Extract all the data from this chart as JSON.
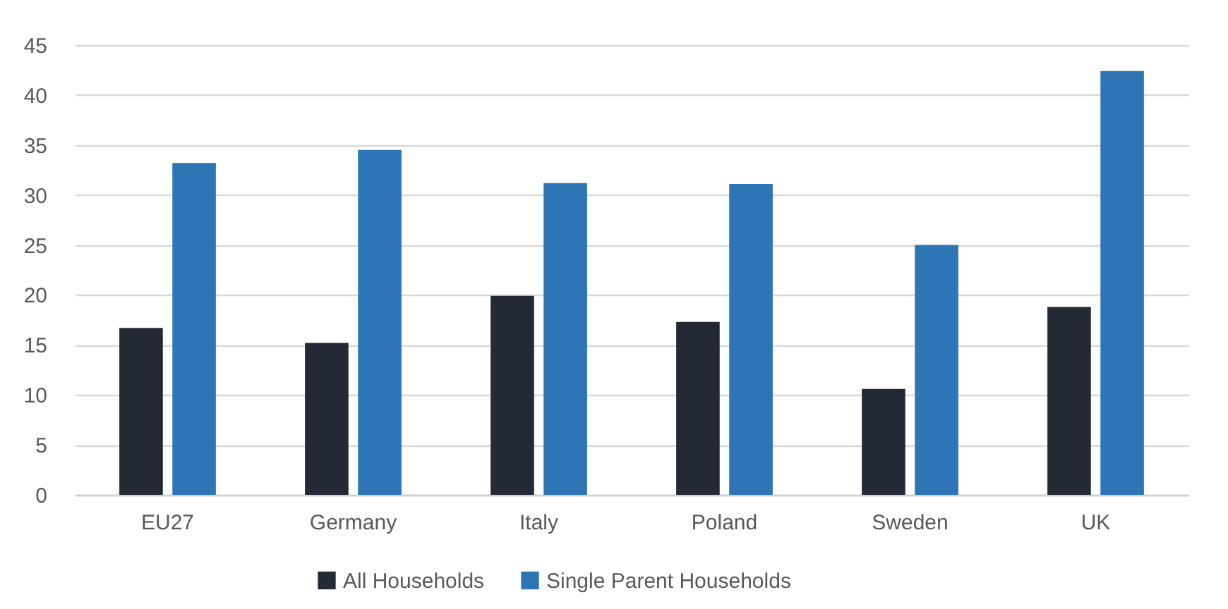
{
  "chart_data": {
    "type": "bar",
    "categories": [
      "EU27",
      "Germany",
      "Italy",
      "Poland",
      "Sweden",
      "UK"
    ],
    "series": [
      {
        "name": "All Households",
        "color": "#232a35",
        "values": [
          16.7,
          15.2,
          19.9,
          17.3,
          10.6,
          18.8
        ]
      },
      {
        "name": "Single Parent Households",
        "color": "#2e75b6",
        "values": [
          33.2,
          34.5,
          31.2,
          31.1,
          25.0,
          42.4
        ]
      }
    ],
    "ylim": [
      0,
      45
    ],
    "yticks": [
      0,
      5,
      10,
      15,
      20,
      25,
      30,
      35,
      40,
      45
    ],
    "grid": "y",
    "legend": "bottom"
  }
}
